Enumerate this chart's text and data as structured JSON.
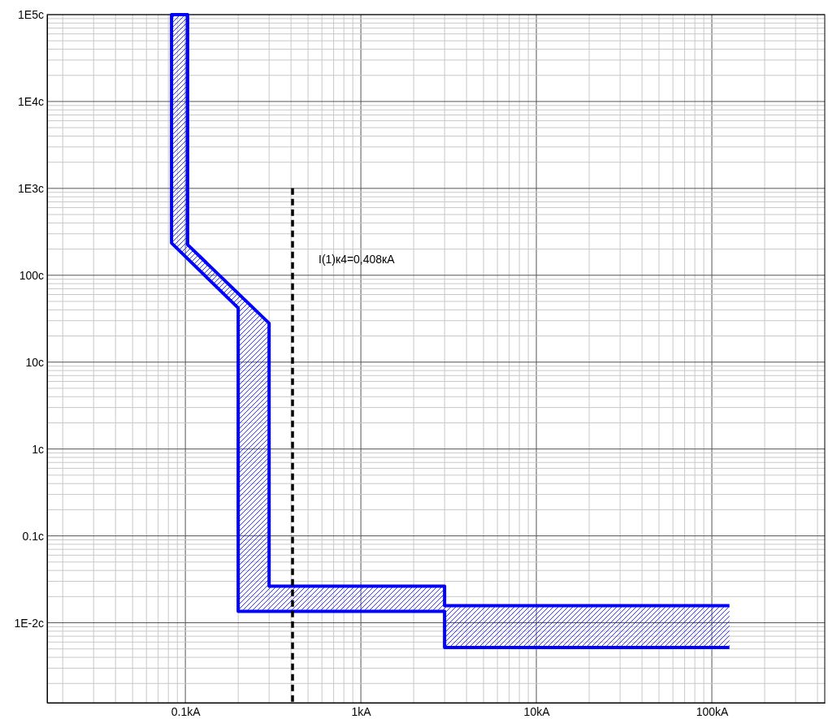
{
  "chart_data": {
    "type": "line",
    "log": "xy",
    "grid": true,
    "marker": "none",
    "xlim": [
      0.0163,
      440
    ],
    "ylim": [
      0.0012,
      100000
    ],
    "xticks": [
      {
        "value": 0.1,
        "label": "0.1kA"
      },
      {
        "value": 1,
        "label": "1kA"
      },
      {
        "value": 10,
        "label": "10kA"
      },
      {
        "value": 100,
        "label": "100kA"
      }
    ],
    "yticks": [
      {
        "value": 0.01,
        "label": "1E-2c"
      },
      {
        "value": 0.1,
        "label": "0.1c"
      },
      {
        "value": 1,
        "label": "1c"
      },
      {
        "value": 10,
        "label": "10c"
      },
      {
        "value": 100,
        "label": "100c"
      },
      {
        "value": 1000,
        "label": "1E3c"
      },
      {
        "value": 10000,
        "label": "1E4c"
      },
      {
        "value": 100000,
        "label": "1E5c"
      }
    ],
    "series": [
      {
        "type": "area",
        "color": "#0000ff",
        "line_style": "solid",
        "x": [
          126,
          3,
          3,
          0.3,
          0.3,
          0.103,
          0.103,
          0.0834,
          0.0834,
          0.2,
          0.2,
          3,
          3,
          126
        ],
        "values": [
          0.0157,
          0.0157,
          0.0264,
          0.0264,
          28,
          225,
          100000,
          100000,
          235,
          42,
          0.0135,
          0.0135,
          0.0052,
          0.0052
        ]
      },
      {
        "color": "#000000",
        "line_style": "dashed",
        "x": [
          0.408,
          0.408
        ],
        "values": [
          1000,
          0.0012
        ]
      }
    ],
    "annotations": [
      "I(1)к4=0,408кА"
    ]
  }
}
